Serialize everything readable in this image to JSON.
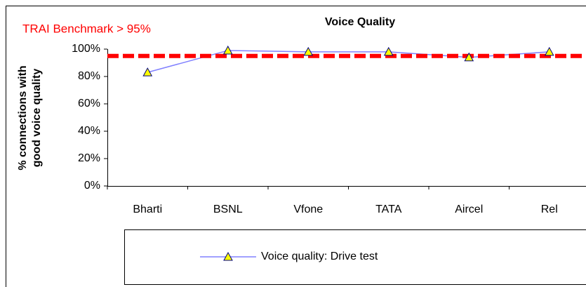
{
  "chart_data": {
    "type": "line",
    "title": "Voice Quality",
    "ylabel": [
      "% connections with",
      "good voice quality"
    ],
    "annotation": "TRAI Benchmark > 95%",
    "benchmark": {
      "value": 95,
      "color": "#ff0000"
    },
    "categories": [
      "Bharti",
      "BSNL",
      "Vfone",
      "TATA",
      "Aircel",
      "Rel"
    ],
    "series": [
      {
        "name": "Voice quality: Drive test",
        "color": "#8080ff",
        "marker_fill": "#ffff00",
        "marker_stroke": "#000080",
        "values": [
          83,
          99,
          98,
          98,
          94,
          98
        ]
      }
    ],
    "ylim": [
      0,
      100
    ],
    "yticks": [
      {
        "value": 0,
        "label": "0%"
      },
      {
        "value": 20,
        "label": "20%"
      },
      {
        "value": 40,
        "label": "40%"
      },
      {
        "value": 60,
        "label": "60%"
      },
      {
        "value": 80,
        "label": "80%"
      },
      {
        "value": 100,
        "label": "100%"
      }
    ],
    "grid": false
  }
}
